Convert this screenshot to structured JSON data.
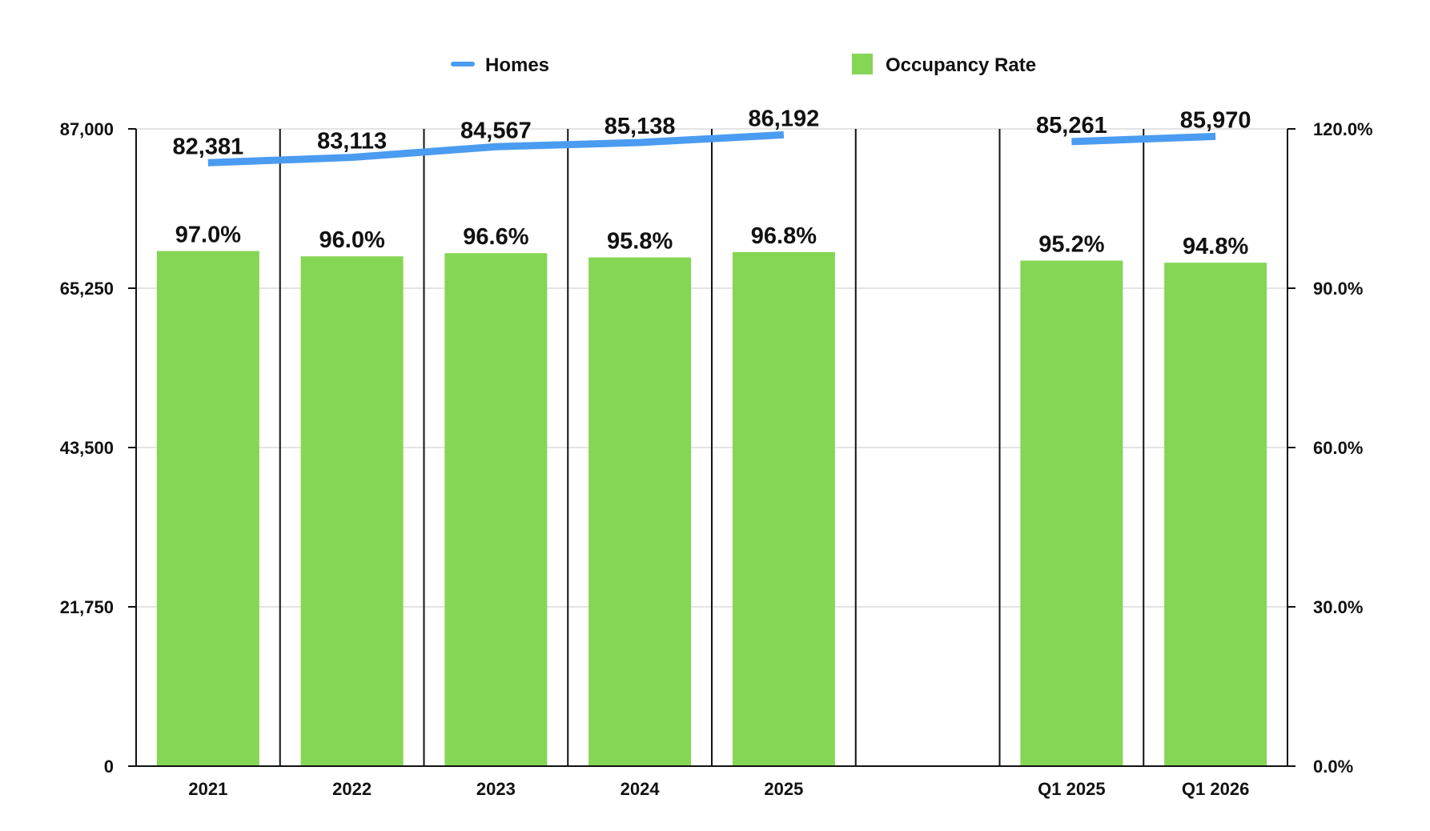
{
  "chart_data": {
    "type": "bar",
    "title": "",
    "categories": [
      "2021",
      "2022",
      "2023",
      "2024",
      "2025",
      "",
      "Q1 2025",
      "Q1 2026"
    ],
    "series": [
      {
        "name": "Homes",
        "type": "line",
        "axis": "left",
        "color": "#4a9cf0",
        "values": [
          82381,
          83113,
          84567,
          85138,
          86192,
          null,
          85261,
          85970
        ],
        "labels": [
          "82,381",
          "83,113",
          "84,567",
          "85,138",
          "86,192",
          "",
          "85,261",
          "85,970"
        ]
      },
      {
        "name": "Occupancy Rate",
        "type": "bar",
        "axis": "right",
        "color": "#85d654",
        "values": [
          97.0,
          96.0,
          96.6,
          95.8,
          96.8,
          null,
          95.2,
          94.8
        ],
        "labels": [
          "97.0%",
          "96.0%",
          "96.6%",
          "95.8%",
          "96.8%",
          "",
          "95.2%",
          "94.8%"
        ]
      }
    ],
    "left_axis": {
      "min": 0,
      "max": 87000,
      "ticks": [
        0,
        21750,
        43500,
        65250,
        87000
      ],
      "tick_labels": [
        "0",
        "21,750",
        "43,500",
        "65,250",
        "87,000"
      ]
    },
    "right_axis": {
      "min": 0,
      "max": 120,
      "ticks": [
        0,
        30,
        60,
        90,
        120
      ],
      "tick_labels": [
        "0.0%",
        "30.0%",
        "60.0%",
        "90.0%",
        "120.0%"
      ]
    },
    "grid": true,
    "legend_position": "top-center"
  }
}
